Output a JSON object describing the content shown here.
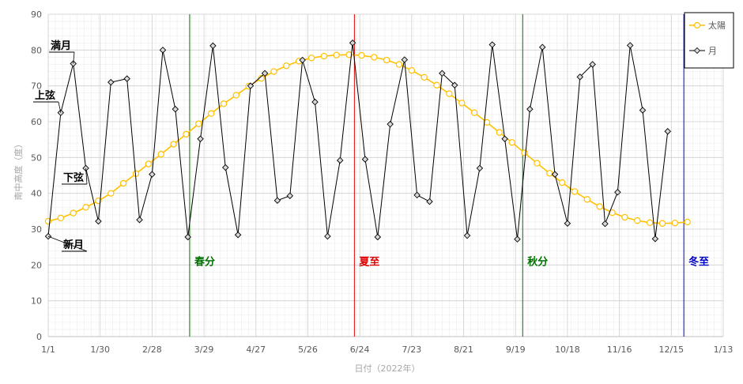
{
  "chart_data": {
    "type": "line",
    "xlabel": "日付（2022年）",
    "ylabel": "南中高度（度）",
    "ylim": [
      0,
      90
    ],
    "yticks": [
      0,
      10,
      20,
      30,
      40,
      50,
      60,
      70,
      80,
      90
    ],
    "xlim": [
      "2022-01-01",
      "2023-01-13"
    ],
    "xticks": [
      {
        "date": "2022-01-01",
        "label": "1/1"
      },
      {
        "date": "2022-01-30",
        "label": "1/30"
      },
      {
        "date": "2022-02-28",
        "label": "2/28"
      },
      {
        "date": "2022-03-29",
        "label": "3/29"
      },
      {
        "date": "2022-04-27",
        "label": "4/27"
      },
      {
        "date": "2022-05-26",
        "label": "5/26"
      },
      {
        "date": "2022-06-24",
        "label": "6/24"
      },
      {
        "date": "2022-07-23",
        "label": "7/23"
      },
      {
        "date": "2022-08-21",
        "label": "8/21"
      },
      {
        "date": "2022-09-19",
        "label": "9/19"
      },
      {
        "date": "2022-10-18",
        "label": "10/18"
      },
      {
        "date": "2022-11-16",
        "label": "11/16"
      },
      {
        "date": "2022-12-15",
        "label": "12/15"
      },
      {
        "date": "2023-01-13",
        "label": "1/13"
      }
    ],
    "grid": true,
    "legend": "top-right",
    "series": [
      {
        "name": "太陽",
        "color": "#ffc000",
        "marker": "circle",
        "points": [
          [
            "2022-01-01",
            32.2
          ],
          [
            "2022-01-08",
            33.1
          ],
          [
            "2022-01-15",
            34.5
          ],
          [
            "2022-01-22",
            36.1
          ],
          [
            "2022-01-29",
            37.9
          ],
          [
            "2022-02-05",
            40.0
          ],
          [
            "2022-02-12",
            42.8
          ],
          [
            "2022-02-19",
            45.5
          ],
          [
            "2022-02-26",
            48.2
          ],
          [
            "2022-03-05",
            50.9
          ],
          [
            "2022-03-12",
            53.7
          ],
          [
            "2022-03-19",
            56.5
          ],
          [
            "2022-03-26",
            59.4
          ],
          [
            "2022-04-02",
            62.3
          ],
          [
            "2022-04-09",
            65.0
          ],
          [
            "2022-04-16",
            67.4
          ],
          [
            "2022-04-23",
            69.9
          ],
          [
            "2022-04-30",
            72.1
          ],
          [
            "2022-05-07",
            74.0
          ],
          [
            "2022-05-14",
            75.6
          ],
          [
            "2022-05-21",
            76.9
          ],
          [
            "2022-05-28",
            77.8
          ],
          [
            "2022-06-04",
            78.3
          ],
          [
            "2022-06-11",
            78.6
          ],
          [
            "2022-06-18",
            78.7
          ],
          [
            "2022-06-25",
            78.5
          ],
          [
            "2022-07-02",
            78.0
          ],
          [
            "2022-07-09",
            77.2
          ],
          [
            "2022-07-16",
            76.0
          ],
          [
            "2022-07-23",
            74.3
          ],
          [
            "2022-07-30",
            72.4
          ],
          [
            "2022-08-06",
            70.2
          ],
          [
            "2022-08-13",
            67.8
          ],
          [
            "2022-08-20",
            65.2
          ],
          [
            "2022-08-27",
            62.5
          ],
          [
            "2022-09-03",
            59.8
          ],
          [
            "2022-09-10",
            57.0
          ],
          [
            "2022-09-17",
            54.2
          ],
          [
            "2022-09-24",
            51.3
          ],
          [
            "2022-10-01",
            48.4
          ],
          [
            "2022-10-08",
            45.6
          ],
          [
            "2022-10-15",
            43.0
          ],
          [
            "2022-10-22",
            40.5
          ],
          [
            "2022-10-29",
            38.3
          ],
          [
            "2022-11-05",
            36.3
          ],
          [
            "2022-11-12",
            34.6
          ],
          [
            "2022-11-19",
            33.3
          ],
          [
            "2022-11-26",
            32.4
          ],
          [
            "2022-12-03",
            31.8
          ],
          [
            "2022-12-10",
            31.6
          ],
          [
            "2022-12-17",
            31.7
          ],
          [
            "2022-12-24",
            32.0
          ]
        ]
      },
      {
        "name": "月",
        "color": "#000000",
        "marker": "diamond",
        "points": [
          [
            "2022-01-01",
            28.0
          ],
          [
            "2022-01-08",
            62.5
          ],
          [
            "2022-01-15",
            76.2
          ],
          [
            "2022-01-22",
            47.0
          ],
          [
            "2022-01-29",
            32.2
          ],
          [
            "2022-02-05",
            71.0
          ],
          [
            "2022-02-14",
            72.0
          ],
          [
            "2022-02-21",
            32.6
          ],
          [
            "2022-02-28",
            45.3
          ],
          [
            "2022-03-06",
            80.0
          ],
          [
            "2022-03-13",
            63.5
          ],
          [
            "2022-03-20",
            27.8
          ],
          [
            "2022-03-27",
            55.2
          ],
          [
            "2022-04-03",
            81.2
          ],
          [
            "2022-04-10",
            47.2
          ],
          [
            "2022-04-17",
            28.4
          ],
          [
            "2022-04-24",
            70.0
          ],
          [
            "2022-05-02",
            73.5
          ],
          [
            "2022-05-09",
            38.0
          ],
          [
            "2022-05-16",
            39.3
          ],
          [
            "2022-05-23",
            77.2
          ],
          [
            "2022-05-30",
            65.5
          ],
          [
            "2022-06-06",
            28.0
          ],
          [
            "2022-06-13",
            49.2
          ],
          [
            "2022-06-20",
            82.0
          ],
          [
            "2022-06-27",
            49.5
          ],
          [
            "2022-07-04",
            27.8
          ],
          [
            "2022-07-11",
            59.3
          ],
          [
            "2022-07-19",
            77.3
          ],
          [
            "2022-07-26",
            39.5
          ],
          [
            "2022-08-02",
            37.7
          ],
          [
            "2022-08-09",
            73.5
          ],
          [
            "2022-08-16",
            70.2
          ],
          [
            "2022-08-23",
            28.2
          ],
          [
            "2022-08-30",
            47.0
          ],
          [
            "2022-09-06",
            81.5
          ],
          [
            "2022-09-13",
            55.2
          ],
          [
            "2022-09-20",
            27.2
          ],
          [
            "2022-09-27",
            63.5
          ],
          [
            "2022-10-04",
            80.8
          ],
          [
            "2022-10-11",
            45.3
          ],
          [
            "2022-10-18",
            31.6
          ],
          [
            "2022-10-25",
            72.5
          ],
          [
            "2022-11-01",
            76.0
          ],
          [
            "2022-11-08",
            31.5
          ],
          [
            "2022-11-15",
            40.3
          ],
          [
            "2022-11-22",
            81.3
          ],
          [
            "2022-11-29",
            63.2
          ],
          [
            "2022-12-06",
            27.3
          ],
          [
            "2022-12-13",
            57.3
          ]
        ]
      }
    ],
    "vertical_markers": [
      {
        "date": "2022-03-21",
        "label": "春分",
        "color": "#007000"
      },
      {
        "date": "2022-06-21",
        "label": "夏至",
        "color": "#e00000"
      },
      {
        "date": "2022-09-23",
        "label": "秋分",
        "color": "#007000"
      },
      {
        "date": "2022-12-22",
        "label": "冬至",
        "color": "#0000c0"
      }
    ],
    "annotations": [
      {
        "text": "満月",
        "points_to": 76.2
      },
      {
        "text": "上弦",
        "points_to": 62.5
      },
      {
        "text": "下弦",
        "points_to": 47.0
      },
      {
        "text": "新月",
        "points_to": 28.0
      }
    ]
  }
}
